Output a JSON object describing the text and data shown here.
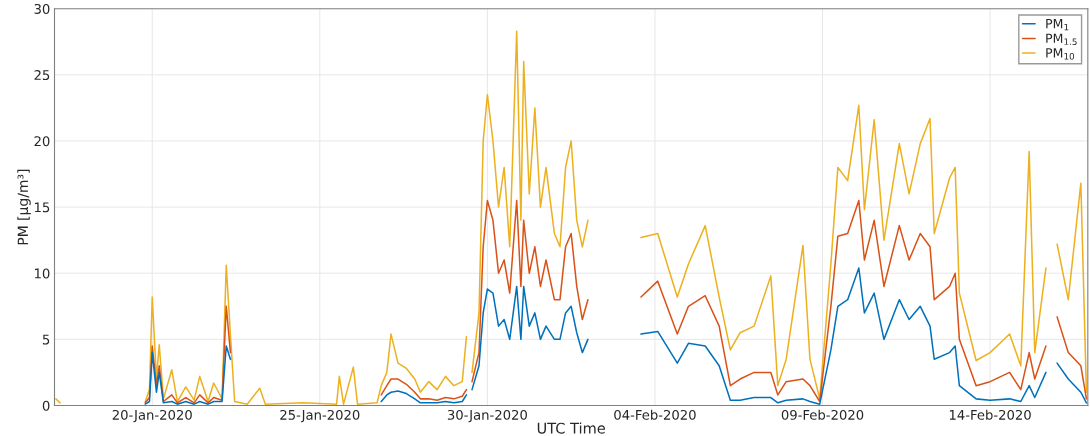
{
  "chart_data": {
    "type": "line",
    "xlabel": "UTC Time",
    "ylabel": "PM [μg/m³]",
    "xlim": [
      "2020-01-17T02:00",
      "2020-02-16T22:00"
    ],
    "xticks": [
      {
        "value": "2020-01-20",
        "label": "20-Jan-2020"
      },
      {
        "value": "2020-01-25",
        "label": "25-Jan-2020"
      },
      {
        "value": "2020-01-30",
        "label": "30-Jan-2020"
      },
      {
        "value": "2020-02-04",
        "label": "04-Feb-2020"
      },
      {
        "value": "2020-02-09",
        "label": "09-Feb-2020"
      },
      {
        "value": "2020-02-14",
        "label": "14-Feb-2020"
      }
    ],
    "ylim": [
      0,
      30
    ],
    "yticks": [
      0,
      5,
      10,
      15,
      20,
      25,
      30
    ],
    "grid": true,
    "legend": "top right",
    "marker": "none",
    "line_style": "solid",
    "x": [
      "2020-01-17T03:00",
      "2020-01-17T06:00",
      "2020-01-17T07:00",
      "2020-01-19T19:00",
      "2020-01-19T22:00",
      "2020-01-20T00:00",
      "2020-01-20T03:00",
      "2020-01-20T05:00",
      "2020-01-20T08:00",
      "2020-01-20T14:00",
      "2020-01-20T18:00",
      "2020-01-21T00:00",
      "2020-01-21T06:00",
      "2020-01-21T10:00",
      "2020-01-21T16:00",
      "2020-01-21T20:00",
      "2020-01-22T02:00",
      "2020-01-22T05:00",
      "2020-01-22T08:00",
      "2020-01-22T11:00",
      "2020-01-22T20:00",
      "2020-01-23T05:00",
      "2020-01-23T09:00",
      "2020-01-24T12:00",
      "2020-01-25T12:00",
      "2020-01-25T14:00",
      "2020-01-25T17:00",
      "2020-01-26T00:00",
      "2020-01-26T03:00",
      "2020-01-26T17:00",
      "2020-01-26T20:00",
      "2020-01-27T00:00",
      "2020-01-27T03:00",
      "2020-01-27T08:00",
      "2020-01-27T14:00",
      "2020-01-27T20:00",
      "2020-01-28T00:00",
      "2020-01-28T06:00",
      "2020-01-28T12:00",
      "2020-01-28T18:00",
      "2020-01-29T00:00",
      "2020-01-29T06:00",
      "2020-01-29T09:00",
      "2020-01-29T11:00",
      "2020-01-29T13:00",
      "2020-01-29T18:00",
      "2020-01-29T21:00",
      "2020-01-30T00:00",
      "2020-01-30T04:00",
      "2020-01-30T08:00",
      "2020-01-30T12:00",
      "2020-01-30T16:00",
      "2020-01-30T21:00",
      "2020-01-31T00:00",
      "2020-01-31T02:00",
      "2020-01-31T06:00",
      "2020-01-31T10:00",
      "2020-01-31T14:00",
      "2020-01-31T18:00",
      "2020-02-01T00:00",
      "2020-02-01T04:00",
      "2020-02-01T08:00",
      "2020-02-01T12:00",
      "2020-02-01T16:00",
      "2020-02-01T20:00",
      "2020-02-02T00:00",
      "2020-02-02T01:00",
      "2020-02-03T14:00",
      "2020-02-04T02:00",
      "2020-02-04T16:00",
      "2020-02-05T00:00",
      "2020-02-05T12:00",
      "2020-02-05T22:00",
      "2020-02-06T06:00",
      "2020-02-06T13:00",
      "2020-02-06T23:00",
      "2020-02-07T11:00",
      "2020-02-07T16:00",
      "2020-02-07T22:00",
      "2020-02-08T10:00",
      "2020-02-08T15:00",
      "2020-02-08T22:00",
      "2020-02-09T06:00",
      "2020-02-09T11:00",
      "2020-02-09T18:00",
      "2020-02-10T02:00",
      "2020-02-10T06:00",
      "2020-02-10T13:00",
      "2020-02-10T20:00",
      "2020-02-11T07:00",
      "2020-02-11T14:00",
      "2020-02-11T22:00",
      "2020-02-12T05:00",
      "2020-02-12T08:00",
      "2020-02-12T19:00",
      "2020-02-12T23:00",
      "2020-02-13T02:00",
      "2020-02-13T14:00",
      "2020-02-14T00:00",
      "2020-02-14T14:00",
      "2020-02-14T22:00",
      "2020-02-15T04:00",
      "2020-02-15T08:00",
      "2020-02-15T16:00",
      "2020-02-15T18:00",
      "2020-02-16T00:00",
      "2020-02-16T08:00",
      "2020-02-16T17:00",
      "2020-02-16T21:00"
    ],
    "series": [
      {
        "name": "PM$_{1}$",
        "color": "#0072bd",
        "values": [
          null,
          null,
          null,
          0.1,
          0.3,
          4.0,
          1.0,
          2.5,
          0.2,
          0.3,
          0.1,
          0.3,
          0.1,
          0.3,
          0.1,
          0.3,
          0.3,
          4.5,
          3.5,
          null,
          null,
          null,
          null,
          null,
          null,
          null,
          null,
          null,
          null,
          null,
          0.3,
          0.8,
          1.0,
          1.1,
          0.9,
          0.5,
          0.2,
          0.2,
          0.2,
          0.3,
          0.2,
          0.3,
          0.8,
          null,
          1.2,
          3.0,
          7.0,
          8.8,
          8.5,
          6.0,
          6.5,
          5.0,
          9.0,
          5.0,
          9.0,
          6.0,
          7.0,
          5.0,
          6.0,
          5.0,
          5.0,
          7.0,
          7.5,
          5.5,
          4.0,
          5.0,
          null,
          5.4,
          5.6,
          3.2,
          4.7,
          4.5,
          3.0,
          0.4,
          0.4,
          0.6,
          0.6,
          0.2,
          0.4,
          0.5,
          0.3,
          0.1,
          4.2,
          7.5,
          8.0,
          10.4,
          7.0,
          8.5,
          5.0,
          8.0,
          6.5,
          7.5,
          6.0,
          3.5,
          4.0,
          4.5,
          1.5,
          0.5,
          0.4,
          0.5,
          0.3,
          1.5,
          0.6,
          2.5,
          null,
          3.2,
          2.0,
          1.0,
          0.2
        ]
      },
      {
        "name": "PM$_{1.5}$",
        "color": "#d95319",
        "values": [
          null,
          null,
          null,
          0.2,
          0.6,
          4.5,
          1.5,
          3.0,
          0.3,
          0.8,
          0.2,
          0.6,
          0.2,
          0.8,
          0.2,
          0.6,
          0.4,
          7.5,
          4.0,
          null,
          null,
          null,
          null,
          null,
          null,
          null,
          null,
          null,
          null,
          null,
          0.8,
          1.5,
          2.0,
          2.0,
          1.6,
          1.0,
          0.5,
          0.5,
          0.4,
          0.6,
          0.5,
          0.7,
          1.2,
          null,
          1.8,
          4.0,
          12.0,
          15.5,
          14.0,
          10.0,
          11.0,
          8.5,
          15.5,
          9.0,
          14.0,
          10.0,
          12.0,
          9.0,
          11.0,
          8.0,
          8.0,
          12.0,
          13.0,
          9.0,
          6.5,
          8.0,
          null,
          8.2,
          9.4,
          5.4,
          7.5,
          8.3,
          6.0,
          1.5,
          2.0,
          2.5,
          2.5,
          0.8,
          1.8,
          2.0,
          1.5,
          0.3,
          7.5,
          12.8,
          13.0,
          15.5,
          11.0,
          14.0,
          9.0,
          13.6,
          11.0,
          13.0,
          12.0,
          8.0,
          9.0,
          10.0,
          5.0,
          1.5,
          1.8,
          2.5,
          1.2,
          4.0,
          2.0,
          4.5,
          null,
          6.7,
          4.0,
          3.0,
          0.5
        ]
      },
      {
        "name": "PM$_{10}$",
        "color": "#edb120",
        "values": [
          0.5,
          0.2,
          null,
          0.3,
          1.2,
          8.2,
          2.0,
          4.6,
          0.5,
          2.7,
          0.3,
          1.4,
          0.4,
          2.2,
          0.3,
          1.7,
          0.5,
          10.6,
          5.3,
          0.3,
          0.1,
          1.3,
          0.1,
          0.2,
          0.1,
          2.2,
          0.1,
          2.9,
          0.1,
          0.2,
          1.5,
          2.5,
          5.4,
          3.2,
          2.8,
          2.0,
          1.0,
          1.8,
          1.2,
          2.2,
          1.5,
          1.8,
          5.2,
          null,
          2.5,
          7.0,
          20.0,
          23.5,
          20.0,
          15.0,
          18.0,
          12.0,
          28.3,
          14.0,
          26.0,
          16.0,
          22.5,
          15.0,
          18.0,
          13.0,
          12.0,
          18.0,
          20.0,
          14.0,
          12.0,
          14.0,
          null,
          12.7,
          13.0,
          8.2,
          10.7,
          13.6,
          8.2,
          4.2,
          5.5,
          6.0,
          9.8,
          1.5,
          3.5,
          12.1,
          3.5,
          0.5,
          10.7,
          18.0,
          17.0,
          22.7,
          14.8,
          21.6,
          12.5,
          19.8,
          16.0,
          19.8,
          21.7,
          13.0,
          17.2,
          18.0,
          8.5,
          3.4,
          4.0,
          5.4,
          3.0,
          19.2,
          4.0,
          10.4,
          null,
          12.2,
          8.0,
          16.8,
          1.0
        ]
      }
    ]
  }
}
